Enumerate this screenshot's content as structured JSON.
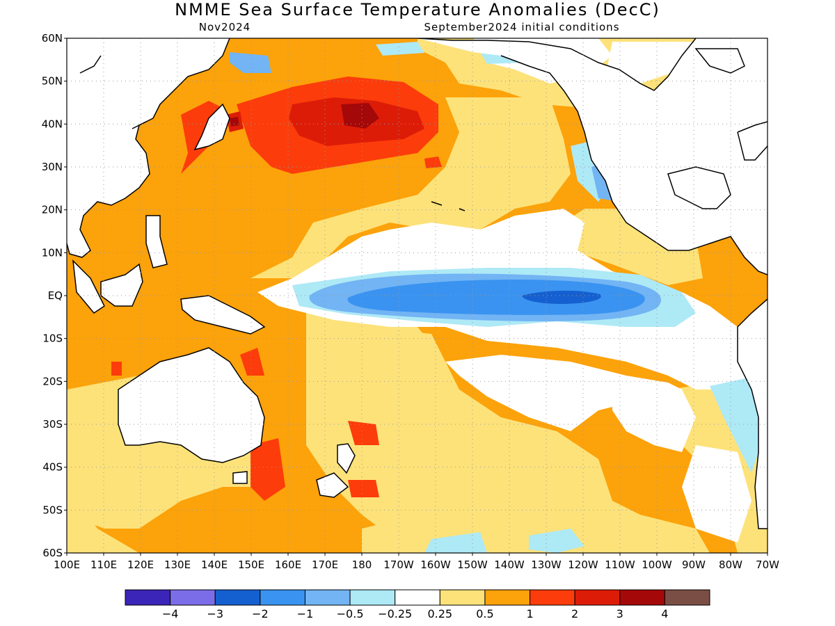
{
  "title": "NMME Sea Surface Temperature Anomalies (DecC)",
  "subtitle_left": "Nov2024",
  "subtitle_right": "September2024 initial conditions",
  "lat_labels": [
    "60N",
    "50N",
    "40N",
    "30N",
    "20N",
    "10N",
    "EQ",
    "10S",
    "20S",
    "30S",
    "40S",
    "50S",
    "60S"
  ],
  "lon_labels": [
    "100E",
    "110E",
    "120E",
    "130E",
    "140E",
    "150E",
    "160E",
    "170E",
    "180",
    "170W",
    "160W",
    "150W",
    "140W",
    "130W",
    "120W",
    "110W",
    "100W",
    "90W",
    "80W",
    "70W"
  ],
  "colorbar": {
    "colors": [
      "#3b24b8",
      "#7b6de8",
      "#1560d0",
      "#3a93f0",
      "#72b4f4",
      "#aee9f6",
      "#ffffff",
      "#fde27a",
      "#fca20a",
      "#fc3c0a",
      "#dd1c08",
      "#a40808",
      "#7a4e45"
    ],
    "labels": [
      "−4",
      "−3",
      "−2",
      "−1",
      "−0.5",
      "−0.25",
      "0.25",
      "0.5",
      "1",
      "2",
      "3",
      "4"
    ]
  },
  "palette": {
    "ocean_base": "#fca20a",
    "light_warm": "#fde27a",
    "neutral": "#ffffff",
    "light_cool": "#aee9f6",
    "cool": "#72b4f4",
    "cooler": "#3a93f0",
    "coolest": "#1560d0",
    "warm": "#fc3c0a",
    "warmer": "#dd1c08",
    "hot": "#a40808",
    "land": "#ffffff",
    "coast": "#000000",
    "grid": "#999999"
  }
}
